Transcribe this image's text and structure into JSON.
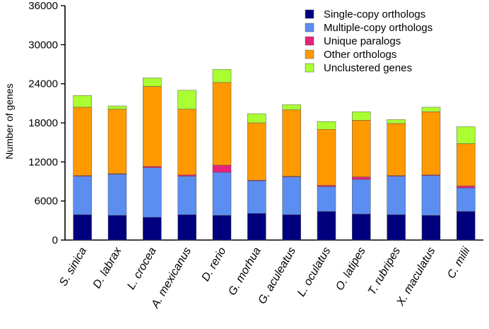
{
  "chart_data": {
    "type": "bar",
    "stacked": true,
    "title": "",
    "xlabel": "",
    "ylabel": "Number of genes",
    "ylim": [
      0,
      36000
    ],
    "yticks": [
      "0",
      "6000",
      "12000",
      "18000",
      "24000",
      "30000",
      "36000"
    ],
    "grid": false,
    "legend_position": "top-right",
    "categories": [
      "S. sinica",
      "D. labrax",
      "L. crocea",
      "A. mexicanus",
      "D. rerio",
      "G. morhua",
      "G. aculeatus",
      "L. oculatus",
      "O. latipes",
      "T. rubripes",
      "X. maculatus",
      "C. milii"
    ],
    "highlight_category": "S. sinica",
    "highlight_color": "#e8242a",
    "series": [
      {
        "name": "Single-copy orthologs",
        "color": "#00007f",
        "values": [
          3900,
          3800,
          3500,
          3900,
          3800,
          4100,
          3900,
          4400,
          4000,
          3900,
          3800,
          4400
        ]
      },
      {
        "name": "Multiple-copy orthologs",
        "color": "#5b8ef0",
        "values": [
          5900,
          6300,
          7600,
          5900,
          6600,
          5000,
          5800,
          3800,
          5300,
          5900,
          6100,
          3600
        ]
      },
      {
        "name": "Unique paralogs",
        "color": "#e8217a",
        "values": [
          100,
          100,
          200,
          200,
          1100,
          100,
          100,
          200,
          400,
          100,
          100,
          300
        ]
      },
      {
        "name": "Other orthologs",
        "color": "#ff9900",
        "values": [
          10500,
          9900,
          12300,
          10100,
          12700,
          8800,
          10200,
          8600,
          8700,
          8000,
          9700,
          6500
        ]
      },
      {
        "name": "Unclustered genes",
        "color": "#aaff33",
        "values": [
          1800,
          500,
          1300,
          2900,
          2000,
          1400,
          800,
          1200,
          1300,
          600,
          700,
          2600
        ]
      }
    ]
  }
}
